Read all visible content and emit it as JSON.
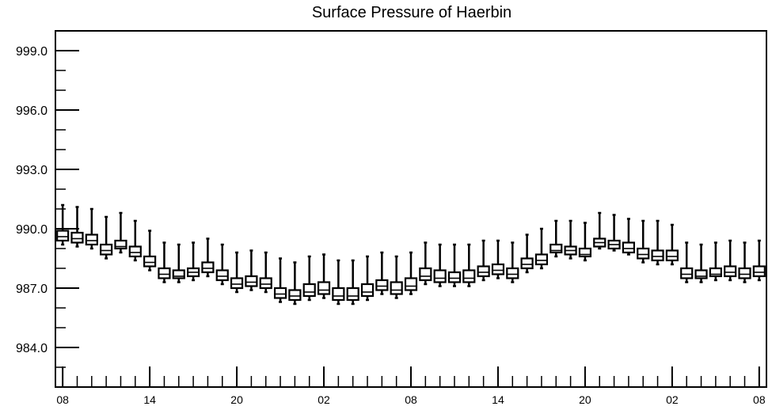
{
  "chart_data": {
    "type": "boxplot",
    "title": "Surface Pressure of Haerbin",
    "xlabel": "",
    "ylabel": "",
    "ylim": [
      982.0,
      1000.0
    ],
    "y_ticks": [
      "999.0",
      "996.0",
      "993.0",
      "990.0",
      "987.0",
      "984.0"
    ],
    "y_tick_values": [
      999,
      996,
      993,
      990,
      987,
      984
    ],
    "y_minor_step": 1.0,
    "x_tick_labels": [
      "08",
      "14",
      "20",
      "02",
      "08",
      "14",
      "20",
      "02",
      "08"
    ],
    "x_tick_positions": [
      1,
      7,
      13,
      19,
      25,
      31,
      37,
      43,
      49
    ],
    "x_range": [
      0.5,
      49.5
    ],
    "grid": false,
    "series": [
      {
        "values": [
          {
            "x": 1,
            "min": 989.2,
            "q1": 989.4,
            "median": 989.6,
            "q3": 989.9,
            "max": 991.2
          },
          {
            "x": 2,
            "min": 989.1,
            "q1": 989.3,
            "median": 989.5,
            "q3": 989.8,
            "max": 991.1
          },
          {
            "x": 3,
            "min": 989.0,
            "q1": 989.2,
            "median": 989.4,
            "q3": 989.7,
            "max": 991.0
          },
          {
            "x": 4,
            "min": 988.5,
            "q1": 988.7,
            "median": 988.9,
            "q3": 989.2,
            "max": 990.6
          },
          {
            "x": 5,
            "min": 988.8,
            "q1": 989.0,
            "median": 989.1,
            "q3": 989.4,
            "max": 990.8
          },
          {
            "x": 6,
            "min": 988.4,
            "q1": 988.6,
            "median": 988.8,
            "q3": 989.1,
            "max": 990.4
          },
          {
            "x": 7,
            "min": 987.9,
            "q1": 988.1,
            "median": 988.3,
            "q3": 988.6,
            "max": 989.9
          },
          {
            "x": 8,
            "min": 987.3,
            "q1": 987.5,
            "median": 987.7,
            "q3": 988.0,
            "max": 989.3
          },
          {
            "x": 9,
            "min": 987.3,
            "q1": 987.5,
            "median": 987.6,
            "q3": 987.9,
            "max": 989.2
          },
          {
            "x": 10,
            "min": 987.4,
            "q1": 987.6,
            "median": 987.8,
            "q3": 988.0,
            "max": 989.3
          },
          {
            "x": 11,
            "min": 987.6,
            "q1": 987.8,
            "median": 988.0,
            "q3": 988.3,
            "max": 989.5
          },
          {
            "x": 12,
            "min": 987.2,
            "q1": 987.4,
            "median": 987.6,
            "q3": 987.9,
            "max": 989.2
          },
          {
            "x": 13,
            "min": 986.8,
            "q1": 987.0,
            "median": 987.2,
            "q3": 987.5,
            "max": 988.8
          },
          {
            "x": 14,
            "min": 986.9,
            "q1": 987.1,
            "median": 987.3,
            "q3": 987.6,
            "max": 988.9
          },
          {
            "x": 15,
            "min": 986.8,
            "q1": 987.0,
            "median": 987.2,
            "q3": 987.5,
            "max": 988.8
          },
          {
            "x": 16,
            "min": 986.3,
            "q1": 986.5,
            "median": 986.7,
            "q3": 987.0,
            "max": 988.5
          },
          {
            "x": 17,
            "min": 986.2,
            "q1": 986.4,
            "median": 986.6,
            "q3": 986.9,
            "max": 988.3
          },
          {
            "x": 18,
            "min": 986.4,
            "q1": 986.6,
            "median": 986.8,
            "q3": 987.2,
            "max": 988.6
          },
          {
            "x": 19,
            "min": 986.5,
            "q1": 986.7,
            "median": 986.9,
            "q3": 987.3,
            "max": 988.7
          },
          {
            "x": 20,
            "min": 986.2,
            "q1": 986.4,
            "median": 986.6,
            "q3": 987.0,
            "max": 988.4
          },
          {
            "x": 21,
            "min": 986.2,
            "q1": 986.4,
            "median": 986.6,
            "q3": 987.0,
            "max": 988.4
          },
          {
            "x": 22,
            "min": 986.4,
            "q1": 986.6,
            "median": 986.8,
            "q3": 987.2,
            "max": 988.6
          },
          {
            "x": 23,
            "min": 986.7,
            "q1": 986.9,
            "median": 987.1,
            "q3": 987.4,
            "max": 988.8
          },
          {
            "x": 24,
            "min": 986.5,
            "q1": 986.7,
            "median": 986.9,
            "q3": 987.3,
            "max": 988.6
          },
          {
            "x": 25,
            "min": 986.7,
            "q1": 986.9,
            "median": 987.1,
            "q3": 987.5,
            "max": 988.8
          },
          {
            "x": 26,
            "min": 987.2,
            "q1": 987.4,
            "median": 987.6,
            "q3": 988.0,
            "max": 989.3
          },
          {
            "x": 27,
            "min": 987.1,
            "q1": 987.3,
            "median": 987.5,
            "q3": 987.9,
            "max": 989.2
          },
          {
            "x": 28,
            "min": 987.1,
            "q1": 987.3,
            "median": 987.5,
            "q3": 987.8,
            "max": 989.2
          },
          {
            "x": 29,
            "min": 987.1,
            "q1": 987.3,
            "median": 987.5,
            "q3": 987.9,
            "max": 989.2
          },
          {
            "x": 30,
            "min": 987.4,
            "q1": 987.6,
            "median": 987.8,
            "q3": 988.1,
            "max": 989.4
          },
          {
            "x": 31,
            "min": 987.5,
            "q1": 987.7,
            "median": 987.9,
            "q3": 988.2,
            "max": 989.4
          },
          {
            "x": 32,
            "min": 987.3,
            "q1": 987.5,
            "median": 987.7,
            "q3": 988.0,
            "max": 989.3
          },
          {
            "x": 33,
            "min": 987.8,
            "q1": 988.0,
            "median": 988.2,
            "q3": 988.5,
            "max": 989.7
          },
          {
            "x": 34,
            "min": 988.0,
            "q1": 988.2,
            "median": 988.4,
            "q3": 988.7,
            "max": 990.0
          },
          {
            "x": 35,
            "min": 988.6,
            "q1": 988.8,
            "median": 988.9,
            "q3": 989.2,
            "max": 990.4
          },
          {
            "x": 36,
            "min": 988.5,
            "q1": 988.7,
            "median": 988.9,
            "q3": 989.1,
            "max": 990.4
          },
          {
            "x": 37,
            "min": 988.4,
            "q1": 988.6,
            "median": 988.7,
            "q3": 989.0,
            "max": 990.3
          },
          {
            "x": 38,
            "min": 989.0,
            "q1": 989.1,
            "median": 989.3,
            "q3": 989.5,
            "max": 990.8
          },
          {
            "x": 39,
            "min": 988.9,
            "q1": 989.0,
            "median": 989.2,
            "q3": 989.4,
            "max": 990.7
          },
          {
            "x": 40,
            "min": 988.7,
            "q1": 988.8,
            "median": 989.0,
            "q3": 989.3,
            "max": 990.5
          },
          {
            "x": 41,
            "min": 988.3,
            "q1": 988.5,
            "median": 988.7,
            "q3": 989.0,
            "max": 990.4
          },
          {
            "x": 42,
            "min": 988.2,
            "q1": 988.4,
            "median": 988.6,
            "q3": 988.9,
            "max": 990.4
          },
          {
            "x": 43,
            "min": 988.2,
            "q1": 988.4,
            "median": 988.6,
            "q3": 988.9,
            "max": 990.2
          },
          {
            "x": 44,
            "min": 987.3,
            "q1": 987.5,
            "median": 987.7,
            "q3": 988.0,
            "max": 989.3
          },
          {
            "x": 45,
            "min": 987.3,
            "q1": 987.5,
            "median": 987.6,
            "q3": 987.9,
            "max": 989.2
          },
          {
            "x": 46,
            "min": 987.4,
            "q1": 987.6,
            "median": 987.7,
            "q3": 988.0,
            "max": 989.3
          },
          {
            "x": 47,
            "min": 987.4,
            "q1": 987.6,
            "median": 987.8,
            "q3": 988.1,
            "max": 989.4
          },
          {
            "x": 48,
            "min": 987.3,
            "q1": 987.5,
            "median": 987.7,
            "q3": 988.0,
            "max": 989.3
          },
          {
            "x": 49,
            "min": 987.4,
            "q1": 987.6,
            "median": 987.8,
            "q3": 988.1,
            "max": 989.4
          }
        ]
      }
    ],
    "colors": {
      "stroke": "#000000",
      "box_fill": "#ffffff",
      "background": "#ffffff"
    }
  }
}
